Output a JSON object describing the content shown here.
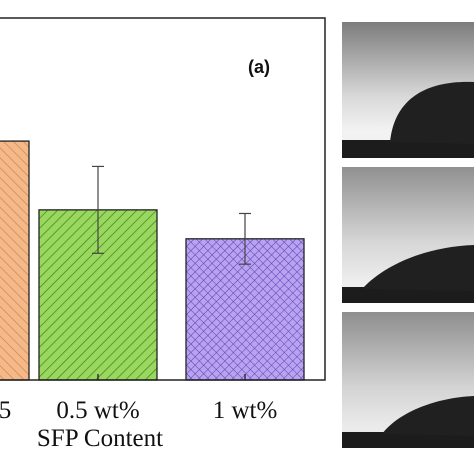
{
  "panel_label": "(a)",
  "chart_data": {
    "type": "bar",
    "xlabel": "SFP Content",
    "ylabel": "",
    "ylim": [
      0,
      100
    ],
    "grid": false,
    "categories": [
      "5",
      "0.5 wt%",
      "1 wt%"
    ],
    "values": [
      66,
      47,
      39
    ],
    "error": [
      0,
      12,
      7
    ],
    "colors": [
      "#f4b98a",
      "#9bd65e",
      "#b8a3f0"
    ],
    "hatch_colors": [
      "#d98a4a",
      "#2e8a1e",
      "#5a3db0"
    ],
    "hatch": [
      "diagonal-left",
      "diagonal-right",
      "crosshatch"
    ]
  },
  "photos": [
    {
      "name": "droplet-photo-1"
    },
    {
      "name": "droplet-photo-2"
    },
    {
      "name": "droplet-photo-3"
    }
  ]
}
